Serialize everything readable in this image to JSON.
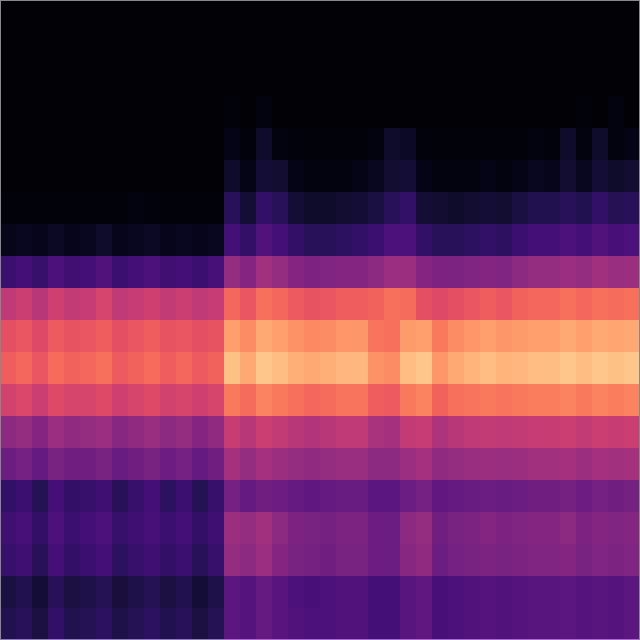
{
  "chart_data": {
    "type": "heatmap",
    "tick_labels": false,
    "zlim": [
      0,
      100
    ],
    "cells": [
      [
        1,
        1,
        1,
        1,
        1,
        1,
        1,
        1,
        1,
        1,
        1,
        1,
        1,
        1,
        1,
        1,
        1,
        1,
        1,
        1,
        1,
        1,
        1,
        1,
        1,
        1,
        1,
        1,
        1,
        1,
        1,
        1,
        1,
        1,
        1,
        1,
        1,
        1,
        1,
        1
      ],
      [
        1,
        1,
        1,
        1,
        1,
        1,
        1,
        1,
        1,
        1,
        1,
        1,
        1,
        1,
        1,
        1,
        1,
        1,
        1,
        1,
        1,
        1,
        1,
        1,
        1,
        1,
        1,
        1,
        1,
        1,
        1,
        1,
        1,
        1,
        1,
        1,
        1,
        1,
        1,
        1
      ],
      [
        1,
        1,
        1,
        1,
        1,
        1,
        1,
        1,
        1,
        1,
        1,
        1,
        1,
        1,
        1,
        1,
        1,
        1,
        1,
        1,
        1,
        1,
        1,
        1,
        1,
        1,
        1,
        1,
        1,
        1,
        1,
        1,
        1,
        1,
        1,
        1,
        1,
        1,
        1,
        1
      ],
      [
        1,
        1,
        1,
        1,
        1,
        1,
        1,
        1,
        1,
        1,
        1,
        1,
        1,
        1,
        2,
        1,
        3,
        1,
        1,
        1,
        1,
        1,
        1,
        1,
        1,
        1,
        1,
        1,
        1,
        1,
        1,
        1,
        1,
        1,
        1,
        1,
        2,
        1,
        3,
        1
      ],
      [
        1,
        1,
        1,
        1,
        1,
        1,
        1,
        1,
        1,
        1,
        1,
        1,
        1,
        1,
        4,
        2,
        8,
        3,
        2,
        2,
        2,
        2,
        2,
        3,
        8,
        7,
        2,
        2,
        2,
        2,
        2,
        2,
        2,
        3,
        2,
        8,
        3,
        8,
        3,
        4
      ],
      [
        1,
        1,
        1,
        1,
        1,
        1,
        1,
        1,
        1,
        1,
        1,
        1,
        1,
        1,
        8,
        4,
        10,
        9,
        4,
        3,
        3,
        3,
        4,
        6,
        9,
        10,
        4,
        3,
        3,
        3,
        4,
        3,
        4,
        6,
        5,
        9,
        6,
        10,
        8,
        9
      ],
      [
        2,
        2,
        2,
        2,
        2,
        2,
        2,
        2,
        3,
        2,
        2,
        2,
        2,
        2,
        16,
        10,
        18,
        16,
        10,
        8,
        8,
        9,
        10,
        12,
        16,
        18,
        10,
        9,
        8,
        9,
        10,
        9,
        12,
        14,
        14,
        16,
        14,
        18,
        15,
        16
      ],
      [
        5,
        6,
        5,
        7,
        5,
        6,
        8,
        5,
        6,
        7,
        5,
        6,
        5,
        6,
        22,
        18,
        25,
        22,
        18,
        16,
        16,
        17,
        18,
        20,
        24,
        24,
        18,
        16,
        16,
        17,
        18,
        17,
        20,
        22,
        22,
        24,
        22,
        25,
        23,
        24
      ],
      [
        20,
        22,
        19,
        24,
        21,
        22,
        25,
        20,
        22,
        24,
        21,
        22,
        20,
        23,
        42,
        38,
        45,
        42,
        38,
        36,
        37,
        38,
        38,
        40,
        44,
        44,
        38,
        36,
        36,
        37,
        38,
        37,
        40,
        42,
        42,
        44,
        42,
        45,
        43,
        44
      ],
      [
        52,
        55,
        50,
        56,
        53,
        54,
        58,
        52,
        54,
        56,
        53,
        55,
        52,
        54,
        68,
        64,
        70,
        68,
        65,
        63,
        64,
        66,
        66,
        67,
        70,
        69,
        62,
        60,
        62,
        64,
        66,
        64,
        67,
        68,
        68,
        70,
        68,
        70,
        69,
        70
      ],
      [
        62,
        64,
        60,
        65,
        63,
        64,
        66,
        62,
        64,
        66,
        63,
        64,
        62,
        63,
        80,
        76,
        82,
        80,
        77,
        75,
        76,
        78,
        78,
        71,
        70,
        79,
        80,
        72,
        76,
        78,
        80,
        78,
        79,
        80,
        80,
        82,
        80,
        82,
        81,
        82
      ],
      [
        66,
        68,
        64,
        69,
        67,
        68,
        70,
        65,
        67,
        69,
        66,
        68,
        65,
        67,
        87,
        82,
        88,
        86,
        83,
        82,
        83,
        85,
        85,
        77,
        76,
        86,
        88,
        78,
        82,
        84,
        86,
        84,
        85,
        86,
        86,
        88,
        86,
        88,
        87,
        88
      ],
      [
        57,
        59,
        55,
        60,
        58,
        58,
        60,
        56,
        58,
        60,
        57,
        58,
        56,
        58,
        72,
        69,
        74,
        72,
        70,
        68,
        69,
        71,
        71,
        66,
        65,
        72,
        74,
        67,
        70,
        71,
        72,
        71,
        72,
        73,
        73,
        74,
        72,
        74,
        73,
        74
      ],
      [
        40,
        42,
        38,
        44,
        41,
        42,
        44,
        39,
        41,
        43,
        40,
        42,
        38,
        41,
        54,
        50,
        55,
        53,
        50,
        49,
        50,
        52,
        52,
        47,
        46,
        53,
        54,
        48,
        50,
        52,
        53,
        52,
        53,
        54,
        54,
        55,
        53,
        55,
        54,
        55
      ],
      [
        32,
        34,
        30,
        35,
        33,
        33,
        35,
        31,
        33,
        35,
        32,
        34,
        30,
        33,
        46,
        42,
        46,
        44,
        42,
        41,
        42,
        43,
        43,
        40,
        40,
        44,
        46,
        41,
        42,
        43,
        44,
        43,
        44,
        45,
        45,
        46,
        44,
        46,
        45,
        46
      ],
      [
        18,
        20,
        15,
        22,
        18,
        19,
        21,
        16,
        19,
        22,
        17,
        20,
        15,
        19,
        34,
        30,
        33,
        32,
        30,
        29,
        30,
        31,
        31,
        28,
        28,
        32,
        34,
        29,
        30,
        31,
        32,
        31,
        32,
        33,
        33,
        34,
        32,
        34,
        33,
        34
      ],
      [
        21,
        23,
        18,
        24,
        20,
        22,
        24,
        19,
        21,
        23,
        20,
        22,
        18,
        21,
        44,
        42,
        45,
        40,
        36,
        35,
        34,
        36,
        36,
        32,
        32,
        40,
        42,
        33,
        35,
        36,
        38,
        36,
        37,
        38,
        38,
        40,
        36,
        38,
        37,
        38
      ],
      [
        19,
        21,
        16,
        22,
        18,
        20,
        22,
        17,
        19,
        21,
        18,
        20,
        16,
        19,
        42,
        40,
        44,
        38,
        35,
        34,
        33,
        35,
        35,
        32,
        32,
        39,
        41,
        32,
        34,
        35,
        36,
        35,
        36,
        37,
        37,
        38,
        35,
        37,
        36,
        37
      ],
      [
        12,
        14,
        10,
        16,
        12,
        13,
        15,
        11,
        13,
        15,
        12,
        14,
        10,
        13,
        28,
        26,
        30,
        27,
        24,
        23,
        24,
        25,
        25,
        22,
        22,
        27,
        29,
        23,
        24,
        25,
        26,
        25,
        26,
        27,
        27,
        28,
        26,
        27,
        26,
        28
      ],
      [
        14,
        16,
        12,
        18,
        14,
        15,
        17,
        13,
        15,
        17,
        14,
        16,
        12,
        15,
        28,
        26,
        30,
        27,
        25,
        24,
        24,
        25,
        25,
        22,
        22,
        27,
        29,
        23,
        24,
        25,
        26,
        25,
        26,
        27,
        27,
        28,
        26,
        27,
        26,
        28
      ]
    ]
  }
}
